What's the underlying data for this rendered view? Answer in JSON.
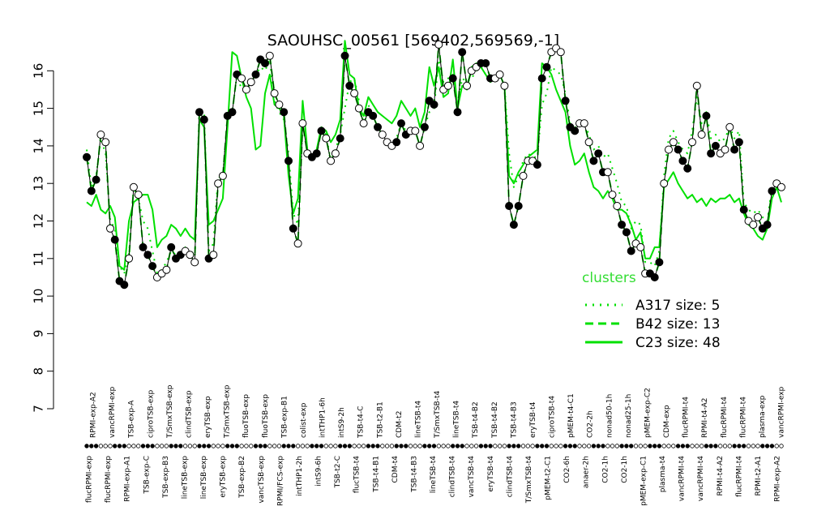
{
  "chart_data": {
    "type": "line",
    "title": "SAOUHSC_00561 [569402,569569,-1]",
    "xlabel": "",
    "ylabel": "",
    "ylim": [
      7,
      16.6
    ],
    "yticks": [
      7,
      8,
      9,
      10,
      11,
      12,
      13,
      14,
      15,
      16
    ],
    "grid": false,
    "legend": {
      "title": "clusters",
      "placement": "right",
      "entries": [
        {
          "label": "A317 size: 5",
          "style": "dotted"
        },
        {
          "label": "B42 size: 13",
          "style": "dashed"
        },
        {
          "label": "C23 size: 48",
          "style": "solid"
        }
      ]
    },
    "colors": {
      "clusters": "#00e000",
      "legend_title": "#33dd33",
      "points": "#000000"
    },
    "x_labels_top": [
      "RPMI-exp-A2",
      "vancRPMI-exp",
      "TSB-exp-A",
      "ciproTSB-exp",
      "T/SmxTSB-exp",
      "clindTSB-exp",
      "eryTSB-exp",
      "T/SmxTSB-exp",
      "fluoTSB-exp",
      "fluoTSB-exp",
      "TSB-exp-B1",
      "colist-exp",
      "intTHP1-6h",
      "intS9-2h",
      "TSB-t4-C",
      "TSB-t2-B1",
      "CDM-t2",
      "lineTSB-t4",
      "T/SmxTSB-t4",
      "lineTSB-t4",
      "TSB-t4-B2",
      "TSB-t4-B2",
      "TSB-t4-B3",
      "eryTSB-t4",
      "ciproTSB-t4",
      "pMEM-t4-C1",
      "CO2-2h",
      "nonad50-1h",
      "nonad25-1h",
      "pMEM-exp-C2",
      "CDM-exp",
      "flucRPMI-t4",
      "RPMI-t4-A2",
      "flucRPMI-t4",
      "flucRPMI-t4",
      "plasma-exp",
      "vancRPMI-exp"
    ],
    "x_labels_bottom": [
      "flucRPMI-exp",
      "flucRPMI-exp",
      "RPMI-exp-A1",
      "TSB-exp-C",
      "TSB-exp-B3",
      "lineTSB-exp",
      "lineTSB-exp",
      "eryTSB-exp",
      "TSB-exp-B2",
      "vancTSB-exp",
      "RPMI/FCS-exp",
      "intTHP1-2h",
      "intS9-6h",
      "TSB-t2-C",
      "flucTSB-t4",
      "TSB-t4-B1",
      "CDM-t4",
      "TSB-t4-B3",
      "lineTSB-t4",
      "clindTSB-t4",
      "vancTSB-t4",
      "eryTSB-t4",
      "clindTSB-t4",
      "T/SmxTSB-t4",
      "pMEM-t2-C1",
      "CO2-6h",
      "anaer-2h",
      "CO2-1h",
      "CO2-1h",
      "pMEM-exp-C1",
      "plasma-t4",
      "vancRPMI-t4",
      "vancRPMI-t4",
      "RPMI-t4-A2",
      "flucRPMI-t4",
      "RPMI-t2-A1",
      "RPMI-exp-A2"
    ],
    "series": [
      {
        "name": "A317 size: 5",
        "style": "dotted",
        "values": [
          13.9,
          12.9,
          13.2,
          14.2,
          13.8,
          12.0,
          11.8,
          10.8,
          10.6,
          11.1,
          12.9,
          12.6,
          12.0,
          11.8,
          11.2,
          10.6,
          10.7,
          10.9,
          11.2,
          11.1,
          11.0,
          11.3,
          11.1,
          10.9,
          15.0,
          14.9,
          11.2,
          11.4,
          13.2,
          13.1,
          14.8,
          14.9,
          15.9,
          15.5,
          15.6,
          15.6,
          15.9,
          16.1,
          16.0,
          16.3,
          15.2,
          14.9,
          14.7,
          13.8,
          12.2,
          11.9,
          14.6,
          13.8,
          13.7,
          13.8,
          14.5,
          14.3,
          13.6,
          13.9,
          14.3,
          15.0,
          15.7,
          15.8,
          15.2,
          14.6,
          15.1,
          14.8,
          14.5,
          14.3,
          14.1,
          14.0,
          14.2,
          14.6,
          14.4,
          14.3,
          14.4,
          14.0,
          14.5,
          14.9,
          15.0,
          16.3,
          15.7,
          15.8,
          15.9,
          15.1,
          15.8,
          15.7,
          15.8,
          16.0,
          16.1,
          15.9,
          15.7,
          15.8,
          15.9,
          15.6,
          13.8,
          12.9,
          13.2,
          13.6,
          13.8,
          13.7,
          13.7,
          15.1,
          15.4,
          16.1,
          16.0,
          15.9,
          15.4,
          14.6,
          14.5,
          14.5,
          14.6,
          14.3,
          13.9,
          14.0,
          13.7,
          13.8,
          13.4,
          13.0,
          12.5,
          12.4,
          11.8,
          12.0,
          11.9,
          10.9,
          10.9,
          10.8,
          11.2,
          13.2,
          14.2,
          14.4,
          14.1,
          13.9,
          13.8,
          14.4,
          15.3,
          14.6,
          14.9,
          14.2,
          14.3,
          14.1,
          14.2,
          14.5,
          14.2,
          14.4,
          12.5,
          12.3,
          12.2,
          12.3,
          12.1,
          12.0,
          12.9,
          13.0,
          12.8
        ]
      },
      {
        "name": "B42 size: 13",
        "style": "dashed",
        "values": [
          13.7,
          12.8,
          13.1,
          14.3,
          14.1,
          11.8,
          11.5,
          10.4,
          10.3,
          11.0,
          12.9,
          12.7,
          11.3,
          11.1,
          10.8,
          10.5,
          10.6,
          10.7,
          11.3,
          11.0,
          11.1,
          11.2,
          11.1,
          10.9,
          14.9,
          14.7,
          11.0,
          11.1,
          13.0,
          13.2,
          14.8,
          14.9,
          15.9,
          15.8,
          15.5,
          15.7,
          15.9,
          16.3,
          16.2,
          16.4,
          15.4,
          15.1,
          14.9,
          13.6,
          11.8,
          11.4,
          14.6,
          13.8,
          13.7,
          13.8,
          14.4,
          14.2,
          13.6,
          13.8,
          14.2,
          16.4,
          15.6,
          15.4,
          15.0,
          14.6,
          14.9,
          14.8,
          14.5,
          14.3,
          14.1,
          14.0,
          14.1,
          14.6,
          14.3,
          14.4,
          14.4,
          14.0,
          14.5,
          15.2,
          15.1,
          16.7,
          15.5,
          15.6,
          15.8,
          14.9,
          16.5,
          15.6,
          16.0,
          16.1,
          16.2,
          16.2,
          15.8,
          15.8,
          15.9,
          15.6,
          12.4,
          11.9,
          12.4,
          13.2,
          13.6,
          13.6,
          13.5,
          15.8,
          16.1,
          16.5,
          16.6,
          16.5,
          15.2,
          14.5,
          14.4,
          14.6,
          14.6,
          14.1,
          13.6,
          13.8,
          13.3,
          13.3,
          12.7,
          12.4,
          11.9,
          11.7,
          11.2,
          11.4,
          11.3,
          10.6,
          10.6,
          10.5,
          10.9,
          13.0,
          13.9,
          14.1,
          13.9,
          13.6,
          13.4,
          14.1,
          15.6,
          14.3,
          14.8,
          13.8,
          14.0,
          13.8,
          13.9,
          14.5,
          13.9,
          14.1,
          12.3,
          12.0,
          11.9,
          12.1,
          11.8,
          11.9,
          12.8,
          13.0,
          12.9
        ]
      },
      {
        "name": "C23 size: 48",
        "style": "solid",
        "values": [
          12.5,
          12.4,
          12.7,
          12.3,
          12.2,
          12.4,
          12.1,
          10.8,
          10.7,
          12.0,
          12.5,
          12.6,
          12.7,
          12.7,
          12.3,
          11.3,
          11.5,
          11.6,
          11.9,
          11.8,
          11.6,
          11.8,
          11.6,
          11.5,
          14.7,
          14.5,
          11.9,
          12.0,
          12.3,
          12.6,
          14.5,
          16.5,
          16.4,
          15.8,
          15.3,
          15.0,
          13.9,
          14.0,
          15.4,
          15.9,
          15.1,
          15.0,
          14.8,
          13.2,
          12.2,
          12.6,
          15.2,
          13.9,
          13.7,
          13.9,
          14.5,
          14.4,
          14.1,
          14.3,
          14.7,
          16.8,
          15.9,
          15.8,
          15.0,
          14.8,
          15.3,
          15.1,
          14.9,
          14.8,
          14.7,
          14.6,
          14.8,
          15.2,
          15.0,
          14.8,
          15.0,
          14.5,
          14.9,
          16.1,
          15.6,
          16.1,
          15.3,
          15.4,
          16.3,
          15.0,
          15.6,
          15.5,
          16.1,
          16.2,
          16.1,
          15.9,
          15.7,
          15.8,
          15.9,
          15.6,
          13.2,
          13.0,
          13.3,
          13.5,
          13.7,
          13.8,
          13.9,
          16.2,
          16.1,
          15.9,
          15.5,
          15.2,
          14.9,
          14.0,
          13.5,
          13.6,
          13.8,
          13.3,
          12.9,
          12.8,
          12.6,
          12.8,
          12.6,
          12.3,
          12.3,
          12.2,
          11.9,
          11.5,
          11.7,
          11.0,
          11.0,
          11.3,
          11.3,
          12.9,
          13.1,
          13.3,
          13.0,
          12.8,
          12.6,
          12.7,
          12.5,
          12.6,
          12.4,
          12.6,
          12.5,
          12.6,
          12.6,
          12.7,
          12.5,
          12.6,
          12.2,
          11.9,
          11.8,
          11.6,
          11.5,
          11.8,
          12.6,
          12.9,
          12.5
        ]
      }
    ]
  }
}
